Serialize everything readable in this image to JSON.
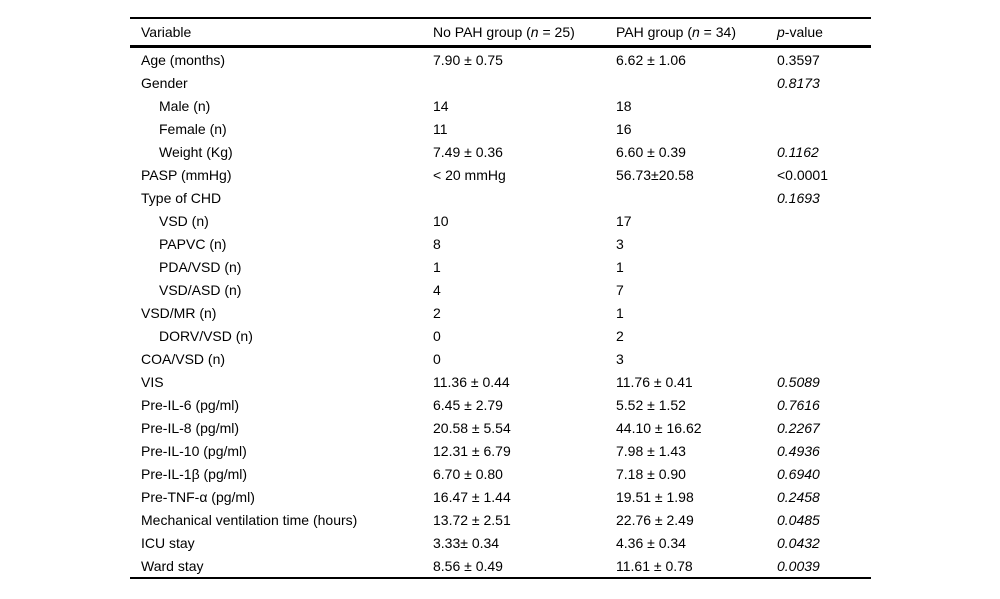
{
  "colors": {
    "background": "#ffffff",
    "text": "#000000",
    "rule": "#000000"
  },
  "table": {
    "header": {
      "col1": "Variable",
      "col2_pre": "No PAH group (",
      "col2_n": "n",
      "col2_post": " = 25)",
      "col3_pre": "PAH group (",
      "col3_n": "n",
      "col3_post": " = 34)",
      "col4_it": "p",
      "col4_post": "-value"
    },
    "rows": [
      {
        "label": "Age (months)",
        "indent": false,
        "no_pah": "7.90 ± 0.75",
        "pah": "6.62 ± 1.06",
        "p": "0.3597",
        "p_italic": false
      },
      {
        "label": "Gender",
        "indent": false,
        "no_pah": "",
        "pah": "",
        "p": "0.8173",
        "p_italic": true
      },
      {
        "label": "Male (n)",
        "indent": true,
        "no_pah": "14",
        "pah": "18",
        "p": "",
        "p_italic": false
      },
      {
        "label": "Female (n)",
        "indent": true,
        "no_pah": "11",
        "pah": "16",
        "p": "",
        "p_italic": false
      },
      {
        "label": "Weight (Kg)",
        "indent": true,
        "no_pah": "7.49 ± 0.36",
        "pah": "6.60 ± 0.39",
        "p": "0.1162",
        "p_italic": true
      },
      {
        "label": "PASP (mmHg)",
        "indent": false,
        "no_pah": "< 20 mmHg",
        "pah": "56.73±20.58",
        "p": "<0.0001",
        "p_italic": false
      },
      {
        "label": "Type of CHD",
        "indent": false,
        "no_pah": "",
        "pah": "",
        "p": "0.1693",
        "p_italic": true
      },
      {
        "label": "VSD (n)",
        "indent": true,
        "no_pah": "10",
        "pah": "17",
        "p": "",
        "p_italic": false
      },
      {
        "label": "PAPVC (n)",
        "indent": true,
        "no_pah": "8",
        "pah": "3",
        "p": "",
        "p_italic": false
      },
      {
        "label": "PDA/VSD (n)",
        "indent": true,
        "no_pah": "1",
        "pah": "1",
        "p": "",
        "p_italic": false
      },
      {
        "label": "VSD/ASD (n)",
        "indent": true,
        "no_pah": "4",
        "pah": "7",
        "p": "",
        "p_italic": false
      },
      {
        "label": "VSD/MR (n)",
        "indent": false,
        "no_pah": "2",
        "pah": "1",
        "p": "",
        "p_italic": false
      },
      {
        "label": "DORV/VSD (n)",
        "indent": true,
        "no_pah": "0",
        "pah": "2",
        "p": "",
        "p_italic": false
      },
      {
        "label": "COA/VSD (n)",
        "indent": false,
        "no_pah": "0",
        "pah": "3",
        "p": "",
        "p_italic": false
      },
      {
        "label": "VIS",
        "indent": false,
        "no_pah": "11.36 ± 0.44",
        "pah": "11.76 ± 0.41",
        "p": "0.5089",
        "p_italic": true
      },
      {
        "label": "Pre-IL-6 (pg/ml)",
        "indent": false,
        "no_pah": "6.45 ± 2.79",
        "pah": "5.52 ± 1.52",
        "p": "0.7616",
        "p_italic": true
      },
      {
        "label": "Pre-IL-8 (pg/ml)",
        "indent": false,
        "no_pah": "20.58 ± 5.54",
        "pah": "44.10 ± 16.62",
        "p": "0.2267",
        "p_italic": true
      },
      {
        "label": "Pre-IL-10 (pg/ml)",
        "indent": false,
        "no_pah": "12.31 ± 6.79",
        "pah": "7.98 ± 1.43",
        "p": "0.4936",
        "p_italic": true
      },
      {
        "label": "Pre-IL-1β (pg/ml)",
        "indent": false,
        "no_pah": "6.70 ± 0.80",
        "pah": "7.18 ± 0.90",
        "p": "0.6940",
        "p_italic": true
      },
      {
        "label": "Pre-TNF-α (pg/ml)",
        "indent": false,
        "no_pah": "16.47 ± 1.44",
        "pah": "19.51 ± 1.98",
        "p": "0.2458",
        "p_italic": true
      },
      {
        "label": "Mechanical ventilation time (hours)",
        "indent": false,
        "no_pah": "13.72 ± 2.51",
        "pah": "22.76 ± 2.49",
        "p": "0.0485",
        "p_italic": true
      },
      {
        "label": "ICU stay",
        "indent": false,
        "no_pah": "3.33± 0.34",
        "pah": "4.36 ± 0.34",
        "p": "0.0432",
        "p_italic": true
      },
      {
        "label": "Ward stay",
        "indent": false,
        "no_pah": "8.56 ± 0.49",
        "pah": "11.61 ± 0.78",
        "p": "0.0039",
        "p_italic": true
      }
    ]
  }
}
